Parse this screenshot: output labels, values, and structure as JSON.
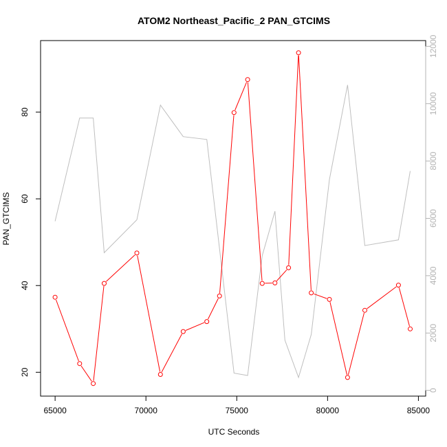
{
  "chart_data": {
    "type": "line",
    "title": "ATOM2 Northeast_Pacific_2 PAN_GTCIMS",
    "xlabel": "UTC Seconds",
    "ylabel": "PAN_GTCIMS",
    "xlim": [
      64200,
      85400
    ],
    "ylim": [
      14.5,
      96.5
    ],
    "ylim_right": [
      -200,
      12200
    ],
    "grid": false,
    "colors": {
      "primary": "#ff0000",
      "secondary": "#bebebe",
      "right_axis": "#b3b3b3"
    },
    "x_ticks": [
      65000,
      70000,
      75000,
      80000,
      85000
    ],
    "x_tick_labels": [
      "65000",
      "70000",
      "75000",
      "80000",
      "85000"
    ],
    "y_ticks": [
      20,
      40,
      60,
      80
    ],
    "y_tick_labels": [
      "20",
      "40",
      "60",
      "80"
    ],
    "y_ticks_right": [
      0,
      2000,
      4000,
      6000,
      8000,
      10000,
      12000
    ],
    "y_tick_labels_right": [
      "0",
      "2000",
      "4000",
      "6000",
      "8000",
      "10000",
      "12000"
    ],
    "series": [
      {
        "axis": "left",
        "marker": "open-circle",
        "x": [
          65000,
          66350,
          67100,
          67700,
          69500,
          70800,
          72050,
          73350,
          74050,
          74850,
          75600,
          76400,
          77100,
          77850,
          78400,
          79100,
          80100,
          81100,
          82050,
          83900,
          84550
        ],
        "y": [
          37.3,
          22.0,
          17.4,
          40.5,
          47.5,
          19.5,
          29.4,
          31.7,
          37.6,
          79.9,
          87.5,
          40.5,
          40.6,
          44.1,
          93.7,
          38.3,
          36.8,
          18.8,
          34.3,
          40.1,
          30.0
        ]
      },
      {
        "axis": "right",
        "marker": "none",
        "x": [
          65000,
          66350,
          67100,
          67700,
          69500,
          70800,
          72050,
          73350,
          74850,
          75600,
          76400,
          77100,
          77650,
          78400,
          79100,
          80100,
          81100,
          82050,
          83900,
          84550
        ],
        "y": [
          5900,
          9500,
          9500,
          4800,
          5950,
          9950,
          8850,
          8750,
          600,
          520,
          4700,
          6250,
          1750,
          450,
          1950,
          7350,
          10650,
          5050,
          5250,
          7650
        ]
      }
    ]
  }
}
